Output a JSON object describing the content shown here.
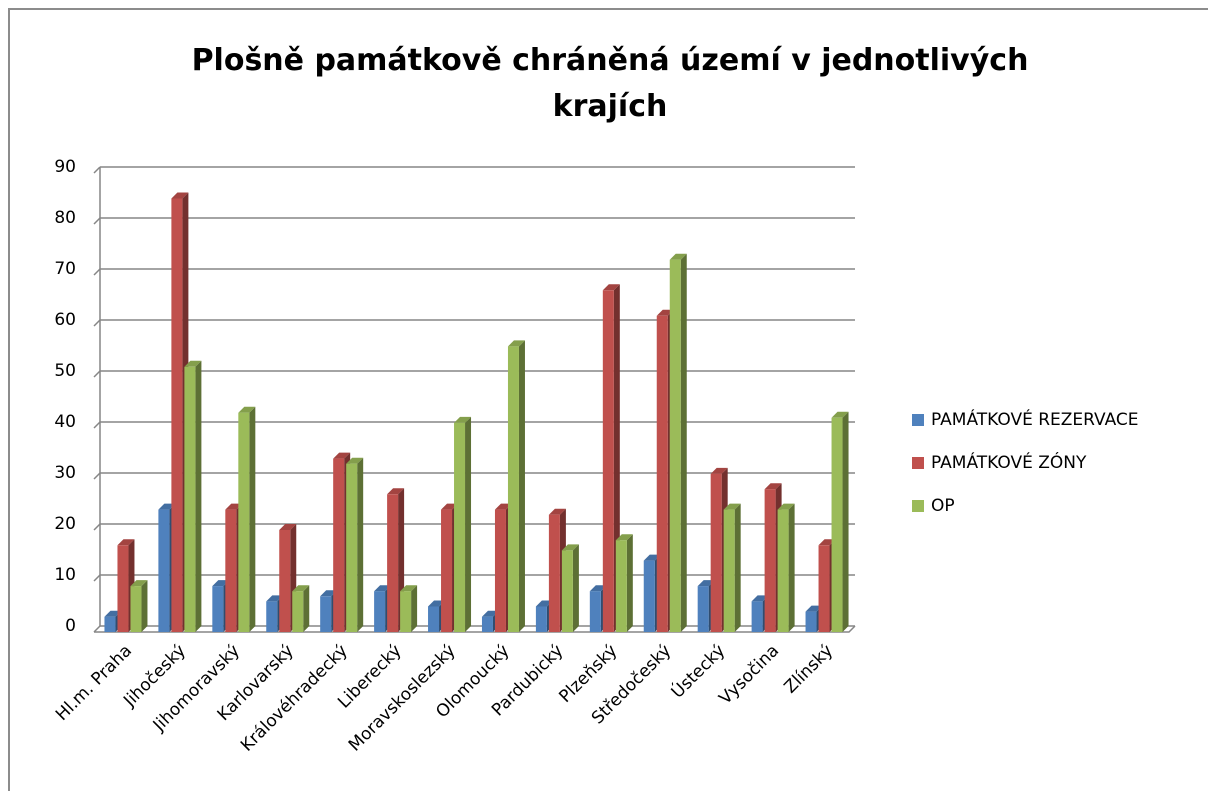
{
  "chart_data": {
    "type": "bar",
    "title": "Plošně památkově chráněná území v jednotlivých krajích",
    "categories": [
      "Hl.m. Praha",
      "Jihočeský",
      "Jihomoravský",
      "Karlovarský",
      "Královéhradecký",
      "Liberecký",
      "Moravskoslezský",
      "Olomoucký",
      "Pardubický",
      "Plzeňský",
      "Středočeský",
      "Ústecký",
      "Vysočina",
      "Zlínský"
    ],
    "series": [
      {
        "name": "PAMÁTKOVÉ REZERVACE",
        "color": "#4f81bd",
        "values": [
          3,
          24,
          9,
          6,
          7,
          8,
          5,
          3,
          5,
          8,
          14,
          9,
          6,
          4
        ]
      },
      {
        "name": "PAMÁTKOVÉ ZÓNY",
        "color": "#c0504d",
        "values": [
          17,
          85,
          24,
          20,
          34,
          27,
          24,
          24,
          23,
          67,
          62,
          31,
          28,
          17
        ]
      },
      {
        "name": "OP",
        "color": "#9bbb59",
        "values": [
          9,
          52,
          43,
          8,
          33,
          8,
          41,
          56,
          16,
          18,
          73,
          24,
          24,
          42
        ]
      }
    ],
    "ylim": [
      0,
      90
    ],
    "yticks": [
      0,
      10,
      20,
      30,
      40,
      50,
      60,
      70,
      80,
      90
    ],
    "grid": true,
    "legend": "right"
  }
}
